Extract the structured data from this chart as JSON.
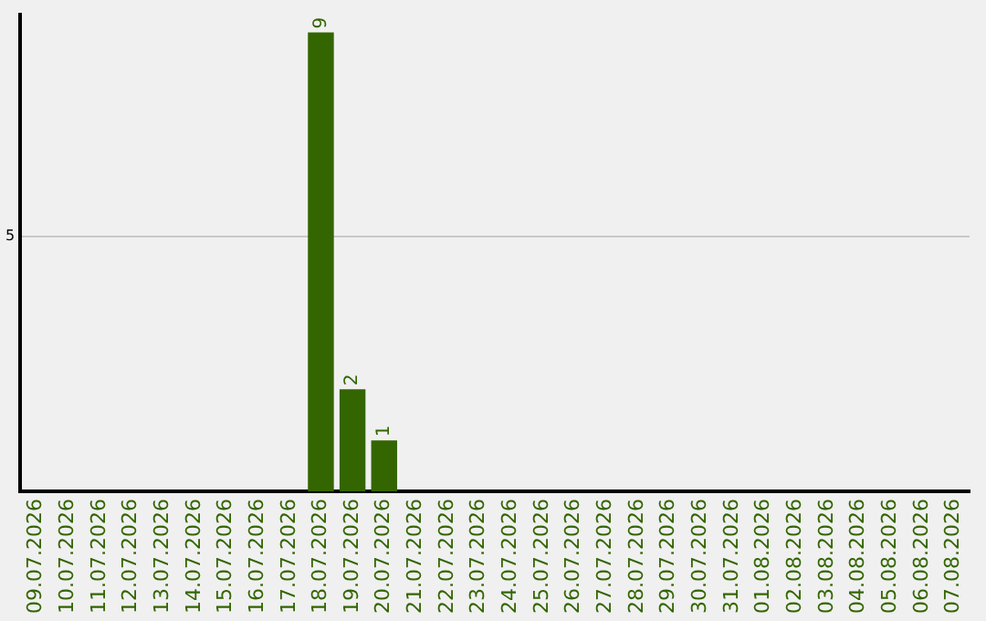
{
  "chart_data": {
    "type": "bar",
    "categories": [
      "09.07.2026",
      "10.07.2026",
      "11.07.2026",
      "12.07.2026",
      "13.07.2026",
      "14.07.2026",
      "15.07.2026",
      "16.07.2026",
      "17.07.2026",
      "18.07.2026",
      "19.07.2026",
      "20.07.2026",
      "21.07.2026",
      "22.07.2026",
      "23.07.2026",
      "24.07.2026",
      "25.07.2026",
      "26.07.2026",
      "27.07.2026",
      "28.07.2026",
      "29.07.2026",
      "30.07.2026",
      "31.07.2026",
      "01.08.2026",
      "02.08.2026",
      "03.08.2026",
      "04.08.2026",
      "05.08.2026",
      "06.08.2026",
      "07.08.2026"
    ],
    "values": [
      0,
      0,
      0,
      0,
      0,
      0,
      0,
      0,
      0,
      9,
      2,
      1,
      0,
      0,
      0,
      0,
      0,
      0,
      0,
      0,
      0,
      0,
      0,
      0,
      0,
      0,
      0,
      0,
      0,
      0
    ],
    "value_labels": [
      null,
      null,
      null,
      null,
      null,
      null,
      null,
      null,
      null,
      "9",
      "2",
      "1",
      null,
      null,
      null,
      null,
      null,
      null,
      null,
      null,
      null,
      null,
      null,
      null,
      null,
      null,
      null,
      null,
      null,
      null
    ],
    "color": "#336600",
    "ylim": [
      0,
      9.35
    ],
    "yticks": [
      5
    ],
    "grid": "y",
    "legend": false
  }
}
